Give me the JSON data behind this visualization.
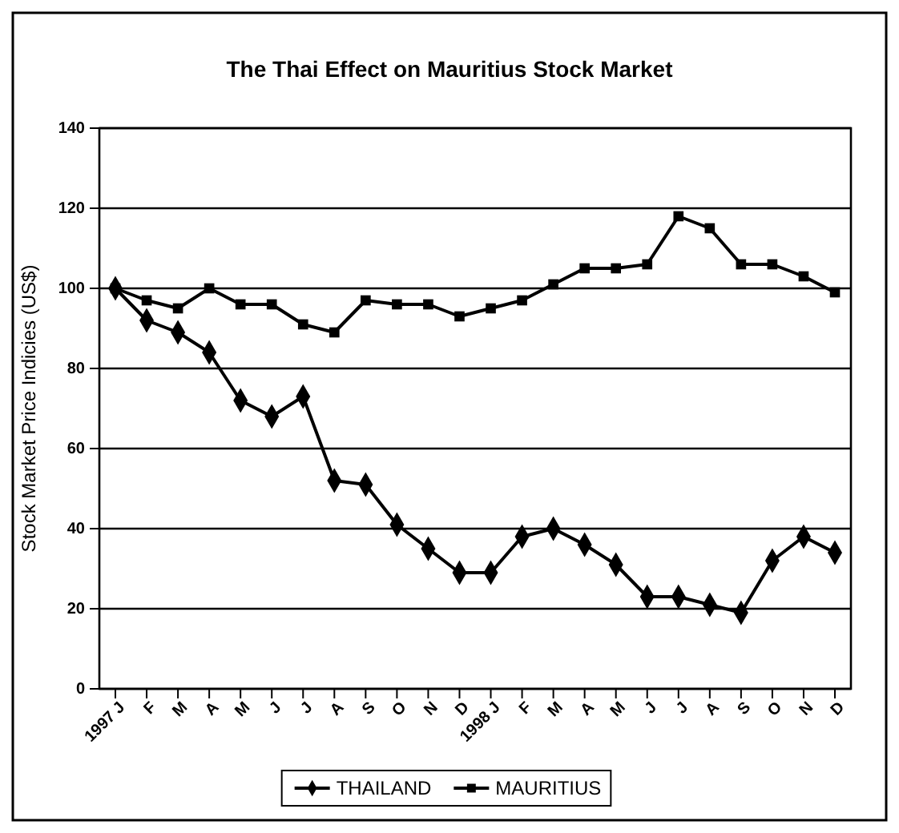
{
  "chart_data": {
    "type": "line",
    "title": "The Thai Effect on Mauritius Stock Market",
    "ylabel": "Stock Market Price Indicies (US$)",
    "categories": [
      "1997 J",
      "F",
      "M",
      "A",
      "M",
      "J",
      "J",
      "A",
      "S",
      "O",
      "N",
      "D",
      "1998 J",
      "F",
      "M",
      "A",
      "M",
      "J",
      "J",
      "A",
      "S",
      "O",
      "N",
      "D"
    ],
    "series": [
      {
        "name": "THAILAND",
        "color": "#000000",
        "marker": "diamond",
        "values": [
          100,
          92,
          89,
          84,
          72,
          68,
          73,
          52,
          51,
          41,
          35,
          29,
          29,
          38,
          40,
          36,
          31,
          23,
          23,
          21,
          19,
          32,
          38,
          34
        ]
      },
      {
        "name": "MAURITIUS",
        "color": "#000000",
        "marker": "square",
        "values": [
          100,
          97,
          95,
          100,
          96,
          96,
          91,
          89,
          97,
          96,
          96,
          93,
          95,
          97,
          101,
          105,
          105,
          106,
          118,
          115,
          106,
          106,
          103,
          99
        ]
      }
    ],
    "ylim": [
      0,
      140
    ],
    "yticks": [
      0,
      20,
      40,
      60,
      80,
      100,
      120,
      140
    ],
    "grid": "y",
    "legend": "bottom"
  }
}
